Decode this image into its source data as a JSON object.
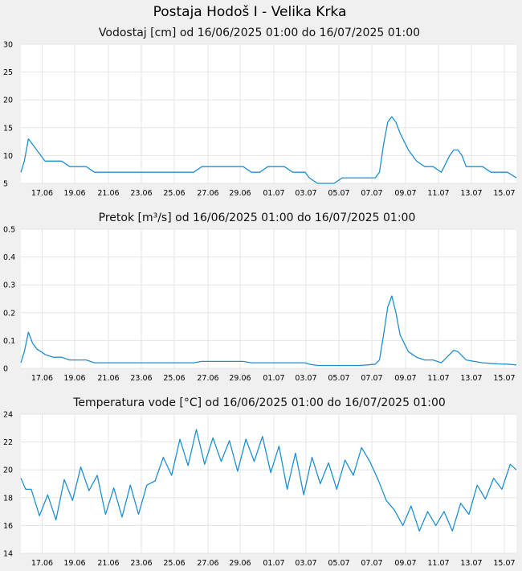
{
  "page": {
    "title": "Postaja Hodoš I - Velika Krka"
  },
  "colors": {
    "background": "#f0f0f0",
    "plot": "#ffffff",
    "grid": "#e4e4e4",
    "series": "#1f8fcf"
  },
  "chart_data": [
    {
      "type": "line",
      "title": "Vodostaj [cm] od 16/06/2025 01:00 do 16/07/2025 01:00",
      "ylim": [
        5,
        30
      ],
      "yticks": [
        "30",
        "25",
        "20",
        "15",
        "10",
        "5"
      ],
      "xlim": [
        "2025-06-16 01:00",
        "2025-07-16 01:00"
      ],
      "xticks": [
        "17.06",
        "19.06",
        "21.06",
        "23.06",
        "25.06",
        "27.06",
        "29.06",
        "01.07",
        "03.07",
        "05.07",
        "07.07",
        "09.07",
        "11.07",
        "13.07",
        "15.07"
      ],
      "grid": true,
      "series": [
        {
          "x": [
            "2025-06-16 01:00",
            "2025-06-16 06:00",
            "2025-06-16 12:00",
            "2025-06-16 18:00",
            "2025-06-17 00:00",
            "2025-06-17 06:00",
            "2025-06-17 12:00",
            "2025-06-18 00:00",
            "2025-06-18 12:00",
            "2025-06-19 00:00",
            "2025-06-19 12:00",
            "2025-06-20 00:00",
            "2025-06-20 12:00",
            "2025-06-21 00:00",
            "2025-06-22 00:00",
            "2025-06-23 00:00",
            "2025-06-24 00:00",
            "2025-06-25 00:00",
            "2025-06-26 00:00",
            "2025-06-26 12:00",
            "2025-06-27 00:00",
            "2025-06-28 00:00",
            "2025-06-29 00:00",
            "2025-06-29 12:00",
            "2025-06-30 00:00",
            "2025-06-30 12:00",
            "2025-07-01 00:00",
            "2025-07-01 12:00",
            "2025-07-02 00:00",
            "2025-07-02 12:00",
            "2025-07-03 00:00",
            "2025-07-03 06:00",
            "2025-07-03 12:00",
            "2025-07-04 00:00",
            "2025-07-04 12:00",
            "2025-07-05 00:00",
            "2025-07-05 12:00",
            "2025-07-06 00:00",
            "2025-07-06 12:00",
            "2025-07-07 00:00",
            "2025-07-07 12:00",
            "2025-07-07 18:00",
            "2025-07-08 00:00",
            "2025-07-08 06:00",
            "2025-07-08 12:00",
            "2025-07-08 18:00",
            "2025-07-09 00:00",
            "2025-07-09 12:00",
            "2025-07-10 00:00",
            "2025-07-10 12:00",
            "2025-07-11 00:00",
            "2025-07-11 12:00",
            "2025-07-12 00:00",
            "2025-07-12 06:00",
            "2025-07-12 12:00",
            "2025-07-12 18:00",
            "2025-07-13 00:00",
            "2025-07-13 12:00",
            "2025-07-14 00:00",
            "2025-07-14 12:00",
            "2025-07-15 00:00",
            "2025-07-15 12:00",
            "2025-07-16 01:00"
          ],
          "y": [
            7,
            9,
            13,
            12,
            11,
            10,
            9,
            9,
            9,
            8,
            8,
            8,
            7,
            7,
            7,
            7,
            7,
            7,
            7,
            7,
            8,
            8,
            8,
            8,
            7,
            7,
            8,
            8,
            8,
            7,
            7,
            7,
            6,
            5,
            5,
            5,
            6,
            6,
            6,
            6,
            6,
            7,
            12,
            16,
            17,
            16,
            14,
            11,
            9,
            8,
            8,
            7,
            10,
            11,
            11,
            10,
            8,
            8,
            8,
            7,
            7,
            7,
            6
          ]
        }
      ]
    },
    {
      "type": "line",
      "title": "Pretok [m³/s] od 16/06/2025 01:00 do 16/07/2025 01:00",
      "ylim": [
        0,
        0.5
      ],
      "yticks": [
        "0.5",
        "0.4",
        "0.3",
        "0.2",
        "0.1",
        "0"
      ],
      "xlim": [
        "2025-06-16 01:00",
        "2025-07-16 01:00"
      ],
      "xticks": [
        "17.06",
        "19.06",
        "21.06",
        "23.06",
        "25.06",
        "27.06",
        "29.06",
        "01.07",
        "03.07",
        "05.07",
        "07.07",
        "09.07",
        "11.07",
        "13.07",
        "15.07"
      ],
      "grid": true,
      "series": [
        {
          "x": [
            "2025-06-16 01:00",
            "2025-06-16 06:00",
            "2025-06-16 12:00",
            "2025-06-16 18:00",
            "2025-06-17 00:00",
            "2025-06-17 06:00",
            "2025-06-17 12:00",
            "2025-06-18 00:00",
            "2025-06-18 12:00",
            "2025-06-19 00:00",
            "2025-06-19 12:00",
            "2025-06-20 00:00",
            "2025-06-20 12:00",
            "2025-06-21 00:00",
            "2025-06-22 00:00",
            "2025-06-23 00:00",
            "2025-06-24 00:00",
            "2025-06-25 00:00",
            "2025-06-26 00:00",
            "2025-06-26 12:00",
            "2025-06-27 00:00",
            "2025-06-28 00:00",
            "2025-06-29 00:00",
            "2025-06-29 12:00",
            "2025-06-30 00:00",
            "2025-06-30 12:00",
            "2025-07-01 00:00",
            "2025-07-01 12:00",
            "2025-07-02 00:00",
            "2025-07-02 12:00",
            "2025-07-03 00:00",
            "2025-07-03 06:00",
            "2025-07-03 12:00",
            "2025-07-04 00:00",
            "2025-07-04 12:00",
            "2025-07-05 00:00",
            "2025-07-05 12:00",
            "2025-07-06 00:00",
            "2025-07-06 12:00",
            "2025-07-07 00:00",
            "2025-07-07 12:00",
            "2025-07-07 18:00",
            "2025-07-08 00:00",
            "2025-07-08 06:00",
            "2025-07-08 12:00",
            "2025-07-08 18:00",
            "2025-07-09 00:00",
            "2025-07-09 12:00",
            "2025-07-10 00:00",
            "2025-07-10 12:00",
            "2025-07-11 00:00",
            "2025-07-11 12:00",
            "2025-07-12 00:00",
            "2025-07-12 06:00",
            "2025-07-12 12:00",
            "2025-07-12 18:00",
            "2025-07-13 00:00",
            "2025-07-13 12:00",
            "2025-07-14 00:00",
            "2025-07-14 12:00",
            "2025-07-15 00:00",
            "2025-07-15 12:00",
            "2025-07-16 01:00"
          ],
          "y": [
            0.02,
            0.06,
            0.13,
            0.09,
            0.07,
            0.06,
            0.05,
            0.04,
            0.04,
            0.03,
            0.03,
            0.03,
            0.02,
            0.02,
            0.02,
            0.02,
            0.02,
            0.02,
            0.02,
            0.02,
            0.025,
            0.025,
            0.025,
            0.025,
            0.02,
            0.02,
            0.02,
            0.02,
            0.02,
            0.02,
            0.02,
            0.02,
            0.015,
            0.01,
            0.01,
            0.01,
            0.01,
            0.01,
            0.01,
            0.012,
            0.015,
            0.03,
            0.12,
            0.22,
            0.26,
            0.2,
            0.12,
            0.06,
            0.04,
            0.03,
            0.03,
            0.02,
            0.05,
            0.065,
            0.06,
            0.045,
            0.03,
            0.025,
            0.02,
            0.018,
            0.016,
            0.015,
            0.012
          ]
        }
      ]
    },
    {
      "type": "line",
      "title": "Temperatura vode [°C] od 16/06/2025 01:00 do 16/07/2025 01:00",
      "ylim": [
        14,
        24
      ],
      "yticks": [
        "24",
        "22",
        "20",
        "18",
        "16",
        "14"
      ],
      "xlim": [
        "2025-06-16 01:00",
        "2025-07-16 01:00"
      ],
      "xticks": [
        "17.06",
        "19.06",
        "21.06",
        "23.06",
        "25.06",
        "27.06",
        "29.06",
        "01.07",
        "03.07",
        "05.07",
        "07.07",
        "09.07",
        "11.07",
        "13.07",
        "15.07"
      ],
      "grid": true,
      "series": [
        {
          "x": [
            "2025-06-16 01:00",
            "2025-06-16 08:00",
            "2025-06-16 16:00",
            "2025-06-17 04:00",
            "2025-06-17 16:00",
            "2025-06-18 04:00",
            "2025-06-18 16:00",
            "2025-06-19 04:00",
            "2025-06-19 16:00",
            "2025-06-20 04:00",
            "2025-06-20 16:00",
            "2025-06-21 04:00",
            "2025-06-21 16:00",
            "2025-06-22 04:00",
            "2025-06-22 16:00",
            "2025-06-23 04:00",
            "2025-06-23 16:00",
            "2025-06-24 04:00",
            "2025-06-24 16:00",
            "2025-06-25 04:00",
            "2025-06-25 16:00",
            "2025-06-26 04:00",
            "2025-06-26 16:00",
            "2025-06-27 04:00",
            "2025-06-27 16:00",
            "2025-06-28 04:00",
            "2025-06-28 16:00",
            "2025-06-29 04:00",
            "2025-06-29 16:00",
            "2025-06-30 04:00",
            "2025-06-30 16:00",
            "2025-07-01 04:00",
            "2025-07-01 16:00",
            "2025-07-02 04:00",
            "2025-07-02 16:00",
            "2025-07-03 04:00",
            "2025-07-03 16:00",
            "2025-07-04 04:00",
            "2025-07-04 16:00",
            "2025-07-05 04:00",
            "2025-07-05 16:00",
            "2025-07-06 04:00",
            "2025-07-06 16:00",
            "2025-07-07 04:00",
            "2025-07-07 16:00",
            "2025-07-08 04:00",
            "2025-07-08 16:00",
            "2025-07-09 04:00",
            "2025-07-09 16:00",
            "2025-07-10 04:00",
            "2025-07-10 16:00",
            "2025-07-11 04:00",
            "2025-07-11 16:00",
            "2025-07-12 04:00",
            "2025-07-12 16:00",
            "2025-07-13 04:00",
            "2025-07-13 16:00",
            "2025-07-14 04:00",
            "2025-07-14 16:00",
            "2025-07-15 04:00",
            "2025-07-15 16:00",
            "2025-07-16 01:00"
          ],
          "y": [
            19.4,
            18.6,
            18.6,
            16.7,
            18.2,
            16.4,
            19.3,
            17.8,
            20.2,
            18.5,
            19.6,
            16.8,
            18.7,
            16.6,
            18.9,
            16.8,
            18.9,
            19.2,
            20.9,
            19.6,
            22.2,
            20.3,
            22.9,
            20.4,
            22.3,
            20.6,
            22.1,
            19.9,
            22.2,
            20.6,
            22.4,
            19.8,
            21.7,
            18.6,
            21.2,
            18.2,
            20.9,
            19.0,
            20.5,
            18.6,
            20.7,
            19.6,
            21.6,
            20.6,
            19.3,
            17.8,
            17.1,
            16.0,
            17.4,
            15.6,
            17.0,
            16.0,
            17.0,
            15.6,
            17.6,
            16.8,
            18.9,
            17.9,
            19.4,
            18.6,
            20.4,
            20.0
          ]
        }
      ]
    }
  ]
}
